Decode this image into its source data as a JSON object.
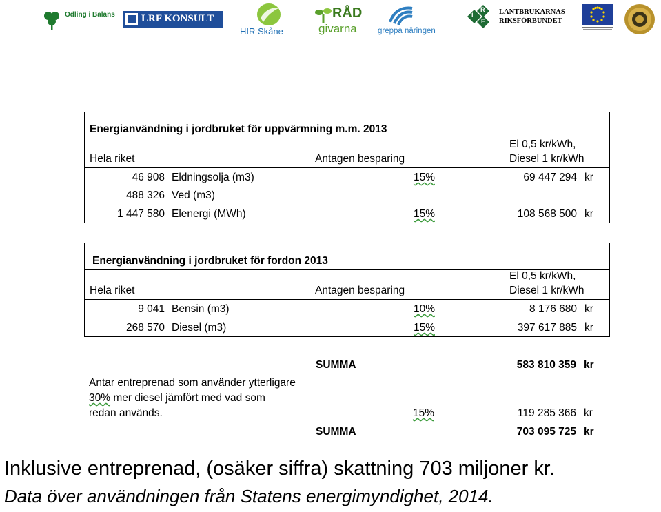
{
  "logos": {
    "odling": "Odling i Balans",
    "lrf_konsult": "LRF KONSULT",
    "hir": "HIR Skåne",
    "radgivarna_top": "RÅD",
    "radgivarna_bottom": "givarna",
    "greppa": "greppa näringen",
    "lrf_letters": [
      "L",
      "R",
      "F"
    ],
    "lantbrukarnas_1": "LANTBRUKARNAS",
    "lantbrukarnas_2": "RIKSFÖRBUNDET"
  },
  "table1": {
    "title": "Energianvändning  i jordbruket för uppvärmning m.m. 2013",
    "col_region": "Hela riket",
    "col_saving": "Antagen besparing",
    "col_price_1": "El 0,5 kr/kWh,",
    "col_price_2": "Diesel 1 kr/kWh",
    "rows": [
      {
        "qty": "46 908",
        "item": "Eldningsolja (m3)",
        "saving": "15%",
        "amount": "69 447 294",
        "unit": "kr"
      },
      {
        "qty": "488 326",
        "item": "Ved (m3)",
        "saving": "",
        "amount": "",
        "unit": ""
      },
      {
        "qty": "1 447 580",
        "item": "Elenergi (MWh)",
        "saving": "15%",
        "amount": "108 568 500",
        "unit": "kr"
      }
    ]
  },
  "table2": {
    "title": "Energianvändning  i jordbruket för fordon 2013",
    "col_region": "Hela riket",
    "col_saving": "Antagen besparing",
    "col_price_1": "El 0,5 kr/kWh,",
    "col_price_2": "Diesel 1 kr/kWh",
    "rows": [
      {
        "qty": "9 041",
        "item": "Bensin (m3)",
        "saving": "10%",
        "amount": "8 176 680",
        "unit": "kr"
      },
      {
        "qty": "268 570",
        "item": "Diesel (m3)",
        "saving": "15%",
        "amount": "397 617 885",
        "unit": "kr"
      }
    ]
  },
  "summary": {
    "summa_label": "SUMMA",
    "summa_1": "583 810 359",
    "unit": "kr",
    "note_1": "Antar entreprenad som använder ytterligare",
    "note_2_pct": "30%",
    "note_2_rest": " mer diesel jämfört med vad som",
    "note_3": "redan används.",
    "extra_saving": "15%",
    "extra_amount": "119 285 366",
    "summa_2": "703 095 725"
  },
  "captions": {
    "line1": "Inklusive entreprenad, (osäker siffra) skattning 703 miljoner kr.",
    "line2": "Data över användningen från Statens energimyndighet, 2014."
  }
}
